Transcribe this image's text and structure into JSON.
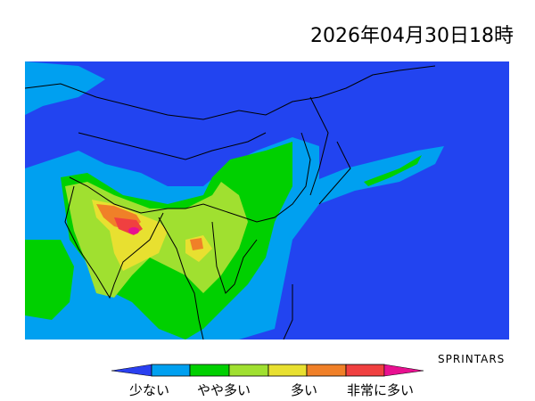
{
  "title": "2026年04月30日18時",
  "credit": "SPRINTARS",
  "colors": {
    "background": "#2244f0",
    "low_arrow": "#2a40f0",
    "levels": [
      "#00a0f0",
      "#00d000",
      "#a0e030",
      "#e8e030",
      "#f08028",
      "#f04040"
    ],
    "high_arrow": "#e81090",
    "border": "#000000"
  },
  "legend": {
    "labels": [
      "少ない",
      "やや多い",
      "多い",
      "非常に多い"
    ]
  }
}
